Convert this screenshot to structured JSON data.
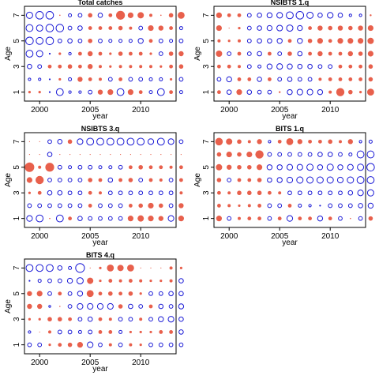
{
  "colors": {
    "positive": "#E8604C",
    "negative": "#1A1AD6",
    "frame": "#000000"
  },
  "chart_data": [
    {
      "type": "scatter",
      "title": "Total catches",
      "xlabel": "year",
      "ylabel": "Age",
      "xlim": [
        1998.5,
        2013.5
      ],
      "ylim": [
        0.3,
        7.7
      ],
      "xticks": [
        "2000",
        "2005",
        "2010"
      ],
      "yticks": [
        "1",
        "3",
        "5",
        "7"
      ],
      "rows": [
        {
          "age": 7,
          "values": [
            -0.5,
            -0.6,
            -0.6,
            0.1,
            -0.25,
            -0.3,
            0.35,
            -0.35,
            0.3,
            0.7,
            0.45,
            0.5,
            0.25,
            0.1,
            0.35,
            0.55
          ]
        },
        {
          "age": 6,
          "values": [
            -0.55,
            -0.5,
            -0.6,
            -0.6,
            -0.3,
            -0.35,
            0.3,
            0.3,
            0.3,
            0.35,
            0.25,
            -0.3,
            0.45,
            0.4,
            0.3,
            -0.25
          ]
        },
        {
          "age": 5,
          "values": [
            -0.6,
            -0.55,
            -0.6,
            -0.3,
            -0.35,
            -0.3,
            0.35,
            -0.3,
            -0.25,
            -0.25,
            -0.25,
            -0.4,
            0.3,
            -0.3,
            -0.25,
            -0.3
          ]
        },
        {
          "age": 4,
          "values": [
            -0.55,
            -0.5,
            -0.05,
            0.2,
            -0.2,
            0.3,
            0.4,
            0.3,
            0.2,
            0.35,
            0.3,
            0.3,
            0.2,
            -0.3,
            0.35,
            0.4
          ]
        },
        {
          "age": 3,
          "values": [
            -0.35,
            -0.3,
            0.3,
            0.3,
            0.35,
            0.3,
            0.4,
            0.25,
            0.2,
            0.25,
            0.25,
            0.25,
            0.25,
            0.2,
            0.3,
            0.35
          ]
        },
        {
          "age": 2,
          "values": [
            -0.2,
            -0.2,
            -0.05,
            0.2,
            -0.25,
            0.4,
            0.3,
            0.25,
            -0.3,
            0.3,
            -0.3,
            -0.3,
            -0.25,
            -0.25,
            0.2,
            -0.3
          ]
        },
        {
          "age": 1,
          "values": [
            0.2,
            0.2,
            -0.05,
            -0.55,
            -0.2,
            -0.2,
            -0.3,
            0.4,
            0.45,
            -0.55,
            0.45,
            0.3,
            -0.25,
            -0.55,
            0.3,
            -0.25
          ]
        }
      ]
    },
    {
      "type": "scatter",
      "title": "NSIBTS 1.q",
      "xlabel": "year",
      "ylabel": "Age",
      "xlim": [
        1998.5,
        2013.5
      ],
      "ylim": [
        0.3,
        7.7
      ],
      "xticks": [
        "2000",
        "2005",
        "2010"
      ],
      "yticks": [
        "1",
        "3",
        "5",
        "7"
      ],
      "rows": [
        {
          "age": 7,
          "values": [
            0.45,
            0.3,
            0.3,
            -0.3,
            -0.35,
            -0.4,
            -0.45,
            -0.55,
            -0.6,
            -0.5,
            -0.35,
            -0.45,
            -0.35,
            -0.2,
            -0.2,
            0.15
          ]
        },
        {
          "age": 6,
          "values": [
            0.45,
            0.05,
            0.2,
            -0.3,
            -0.35,
            -0.4,
            -0.45,
            -0.5,
            -0.4,
            0.3,
            0.4,
            0.35,
            0.4,
            0.35,
            0.4,
            0.45
          ]
        },
        {
          "age": 5,
          "values": [
            0.25,
            0.2,
            0.25,
            -0.3,
            -0.35,
            -0.35,
            -0.4,
            0.3,
            -0.4,
            0.35,
            0.45,
            0.3,
            0.45,
            0.45,
            0.45,
            0.5
          ]
        },
        {
          "age": 4,
          "values": [
            0.5,
            -0.3,
            0.3,
            -0.3,
            -0.35,
            0.3,
            -0.3,
            0.35,
            -0.35,
            0.3,
            0.4,
            0.3,
            0.3,
            0.4,
            0.35,
            0.45
          ]
        },
        {
          "age": 3,
          "values": [
            0.3,
            0.3,
            0.25,
            -0.3,
            -0.25,
            -0.4,
            -0.45,
            -0.4,
            -0.35,
            -0.35,
            -0.3,
            -0.3,
            0.3,
            0.3,
            0.3,
            0.35
          ]
        },
        {
          "age": 2,
          "values": [
            -0.3,
            -0.4,
            0.3,
            0.3,
            -0.35,
            0.3,
            -0.3,
            -0.35,
            -0.3,
            -0.3,
            0.25,
            0.3,
            0.3,
            0.3,
            0.3,
            0.35
          ]
        },
        {
          "age": 1,
          "values": [
            0.3,
            -0.35,
            0.45,
            -0.35,
            -0.3,
            -0.3,
            0.15,
            -0.4,
            -0.45,
            -0.45,
            -0.4,
            0.25,
            0.65,
            0.35,
            0.2,
            0.55
          ]
        }
      ]
    },
    {
      "type": "scatter",
      "title": "NSIBTS 3.q",
      "xlabel": "year",
      "ylabel": "Age",
      "xlim": [
        1998.5,
        2013.5
      ],
      "ylim": [
        0.3,
        7.7
      ],
      "xticks": [
        "2000",
        "2005",
        "2010"
      ],
      "yticks": [
        "1",
        "3",
        "5",
        "7"
      ],
      "rows": [
        {
          "age": 7,
          "values": [
            0,
            0,
            -0.3,
            -0.35,
            0.35,
            -0.45,
            -0.55,
            -0.55,
            -0.55,
            -0.55,
            -0.55,
            -0.55,
            -0.45,
            -0.55,
            -0.45,
            -0.3
          ]
        },
        {
          "age": 6,
          "values": [
            0,
            0,
            -0.35,
            0.05,
            0.05,
            0.05,
            0.05,
            0.05,
            0.05,
            0.05,
            0.05,
            0.05,
            0.05,
            0.05,
            0.05,
            0.05
          ]
        },
        {
          "age": 5,
          "values": [
            0.75,
            0.25,
            0.7,
            -0.3,
            -0.25,
            -0.3,
            -0.3,
            -0.25,
            -0.25,
            -0.3,
            0.3,
            0.35,
            0.3,
            0.3,
            0.25,
            0.3
          ]
        },
        {
          "age": 4,
          "values": [
            0.45,
            0.65,
            -0.3,
            -0.3,
            -0.3,
            -0.3,
            0.35,
            0.3,
            -0.35,
            0.3,
            0.35,
            -0.3,
            0.3,
            0.25,
            -0.3,
            0.3
          ]
        },
        {
          "age": 3,
          "values": [
            0.2,
            0.3,
            -0.35,
            -0.35,
            -0.3,
            -0.3,
            0.3,
            0.25,
            -0.3,
            -0.3,
            -0.3,
            -0.3,
            -0.3,
            -0.3,
            -0.3,
            0.25
          ]
        },
        {
          "age": 2,
          "values": [
            -0.3,
            -0.3,
            -0.3,
            -0.3,
            -0.3,
            -0.3,
            0.3,
            -0.3,
            -0.3,
            -0.3,
            0.3,
            0.35,
            0.45,
            0.35,
            -0.3,
            0.4
          ]
        },
        {
          "age": 1,
          "values": [
            -0.45,
            -0.55,
            0.1,
            -0.55,
            0.3,
            -0.35,
            -0.3,
            -0.3,
            -0.3,
            -0.3,
            0.45,
            0.5,
            0.45,
            0.4,
            -0.45,
            0.45
          ]
        }
      ]
    },
    {
      "type": "scatter",
      "title": "BITS 1.q",
      "xlabel": "year",
      "ylabel": "Age",
      "xlim": [
        1998.5,
        2013.5
      ],
      "ylim": [
        0.3,
        7.7
      ],
      "xticks": [
        "2000",
        "2005",
        "2010"
      ],
      "yticks": [
        "1",
        "3",
        "5",
        "7"
      ],
      "rows": [
        {
          "age": 7,
          "values": [
            0.6,
            0.5,
            0.35,
            0.25,
            0.4,
            -0.2,
            0.3,
            0.55,
            0.4,
            0.3,
            0.3,
            0.35,
            0.25,
            0.4,
            -0.2,
            -0.25
          ]
        },
        {
          "age": 6,
          "values": [
            0.35,
            0.45,
            0.35,
            0.45,
            0.65,
            -0.3,
            -0.3,
            -0.3,
            -0.3,
            -0.3,
            -0.35,
            -0.35,
            -0.3,
            -0.25,
            -0.55,
            -0.55
          ]
        },
        {
          "age": 5,
          "values": [
            0.5,
            0.4,
            0.35,
            0.35,
            0.45,
            -0.4,
            -0.4,
            -0.45,
            -0.45,
            -0.5,
            -0.4,
            -0.5,
            -0.4,
            -0.45,
            -0.5,
            -0.6
          ]
        },
        {
          "age": 4,
          "values": [
            0.35,
            -0.3,
            0.3,
            0.3,
            0.35,
            -0.35,
            -0.4,
            -0.45,
            -0.5,
            -0.5,
            -0.5,
            -0.5,
            -0.45,
            -0.5,
            -0.55,
            -0.55
          ]
        },
        {
          "age": 3,
          "values": [
            0.3,
            0.25,
            0.35,
            0.35,
            0.35,
            0.3,
            0.25,
            -0.3,
            -0.3,
            -0.3,
            -0.3,
            -0.3,
            -0.3,
            -0.35,
            -0.45,
            -0.5
          ]
        },
        {
          "age": 2,
          "values": [
            0.3,
            0.25,
            0.2,
            0.25,
            0.3,
            -0.3,
            -0.3,
            0.3,
            -0.25,
            -0.2,
            -0.05,
            -0.3,
            -0.3,
            -0.3,
            -0.35,
            -0.4
          ]
        },
        {
          "age": 1,
          "values": [
            0.45,
            -0.3,
            0.25,
            0.3,
            0.3,
            -0.3,
            0.3,
            -0.45,
            0.3,
            0.3,
            -0.4,
            0.3,
            -0.3,
            0.1,
            -0.3,
            0.35
          ]
        }
      ]
    },
    {
      "type": "scatter",
      "title": "BITS 4.q",
      "xlabel": "year",
      "ylabel": "Age",
      "xlim": [
        1998.5,
        2013.5
      ],
      "ylim": [
        0.3,
        7.7
      ],
      "xticks": [
        "2000",
        "2005",
        "2010"
      ],
      "yticks": [
        "1",
        "3",
        "5",
        "7"
      ],
      "rows": [
        {
          "age": 7,
          "values": [
            -0.55,
            -0.55,
            -0.55,
            -0.35,
            -0.25,
            -0.7,
            0.05,
            0.2,
            0.55,
            0.5,
            0.55,
            0.05,
            0.05,
            0.05,
            0.25,
            0.2
          ]
        },
        {
          "age": 6,
          "values": [
            -0.05,
            -0.25,
            -0.3,
            -0.3,
            -0.4,
            -0.5,
            0.5,
            0.2,
            0.3,
            0.25,
            0.3,
            0.25,
            0.2,
            0.2,
            0.25,
            -0.35
          ]
        },
        {
          "age": 5,
          "values": [
            0.4,
            0.45,
            -0.3,
            0.3,
            -0.3,
            -0.4,
            0.55,
            0.3,
            0.35,
            0.3,
            0.35,
            0.2,
            -0.3,
            -0.3,
            -0.35,
            -0.35
          ]
        },
        {
          "age": 4,
          "values": [
            0.4,
            0.4,
            -0.15,
            0.1,
            -0.3,
            -0.45,
            -0.45,
            -0.45,
            -0.45,
            0.35,
            -0.35,
            -0.3,
            0.3,
            -0.35,
            -0.3,
            -0.4
          ]
        },
        {
          "age": 3,
          "values": [
            0.2,
            0.2,
            0.35,
            0.35,
            0.3,
            -0.3,
            -0.35,
            0.3,
            0.25,
            -0.3,
            -0.3,
            0.25,
            -0.3,
            -0.4,
            -0.45,
            -0.35
          ]
        },
        {
          "age": 2,
          "values": [
            -0.2,
            0.05,
            0.25,
            -0.3,
            -0.3,
            -0.25,
            -0.3,
            0.3,
            0.3,
            -0.25,
            0.2,
            0.2,
            0.2,
            0.3,
            0.3,
            -0.35
          ]
        },
        {
          "age": 1,
          "values": [
            -0.3,
            -0.3,
            0.2,
            0.3,
            0.35,
            0.45,
            -0.45,
            -0.3,
            0.25,
            -0.3,
            0.25,
            0.2,
            -0.3,
            -0.3,
            -0.3,
            -0.3
          ]
        }
      ]
    }
  ]
}
